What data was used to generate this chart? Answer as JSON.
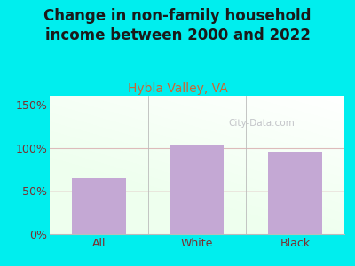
{
  "title": "Change in non-family household\nincome between 2000 and 2022",
  "subtitle": "Hybla Valley, VA",
  "categories": [
    "All",
    "White",
    "Black"
  ],
  "values": [
    65,
    103,
    95
  ],
  "bar_color": "#C4A8D4",
  "title_fontsize": 12,
  "subtitle_fontsize": 10,
  "subtitle_color": "#cc6633",
  "title_color": "#1a1a1a",
  "tick_color": "#7a3030",
  "background_outer": "#00EEEE",
  "ylim": [
    0,
    160
  ],
  "yticks": [
    0,
    50,
    100,
    150
  ],
  "ytick_labels": [
    "0%",
    "50%",
    "100%",
    "150%"
  ],
  "watermark": "City-Data.com",
  "hline_color": "#ddbbbb",
  "separator_color": "#bbbbbb"
}
